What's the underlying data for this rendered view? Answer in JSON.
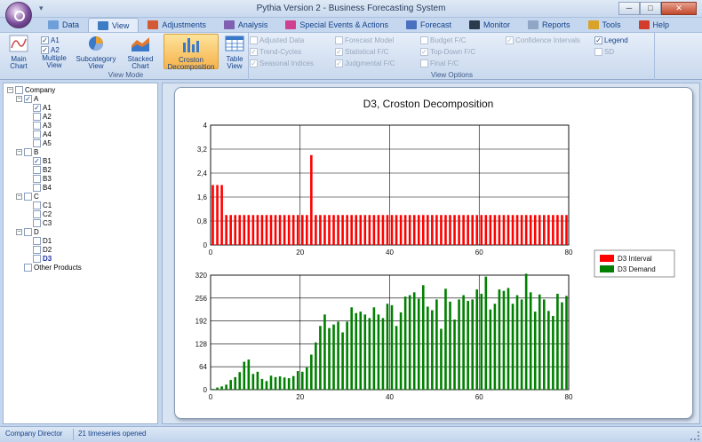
{
  "window": {
    "title": "Pythia Version 2 - Business Forecasting System",
    "qat_label": "▾",
    "minimize_label": "─",
    "maximize_label": "□",
    "close_label": "✕"
  },
  "tabs": [
    {
      "label": "Data",
      "icon": "data-icon",
      "color": "#6f9fd8"
    },
    {
      "label": "View",
      "icon": "view-icon",
      "color": "#3e7cc4"
    },
    {
      "label": "Adjustments",
      "icon": "adjustments-icon",
      "color": "#d35a35"
    },
    {
      "label": "Analysis",
      "icon": "analysis-icon",
      "color": "#8060b0"
    },
    {
      "label": "Special Events & Actions",
      "icon": "special-events-icon",
      "color": "#d04090"
    },
    {
      "label": "Forecast",
      "icon": "forecast-icon",
      "color": "#4a70c0"
    },
    {
      "label": "Monitor",
      "icon": "monitor-icon",
      "color": "#2b3a4c"
    },
    {
      "label": "Reports",
      "icon": "reports-icon",
      "color": "#8fa6c6"
    },
    {
      "label": "Tools",
      "icon": "tools-icon",
      "color": "#d9a32a"
    },
    {
      "label": "Help",
      "icon": "help-icon",
      "color": "#d23d2b"
    }
  ],
  "ribbon": {
    "view_mode": {
      "label": "View Mode",
      "main_chart": "Main Chart",
      "multiple_view": "Multiple View",
      "multiple_checks": [
        {
          "label": "A1",
          "checked": true
        },
        {
          "label": "A2",
          "checked": true
        }
      ],
      "subcategory_view": "Subcategory View",
      "stacked_chart": "Stacked Chart",
      "croston_decomposition": "Croston Decomposition",
      "table_view": "Table View"
    },
    "view_options": {
      "label": "View Options",
      "col1": [
        {
          "label": "Adjusted Data",
          "checked": false,
          "enabled": false
        },
        {
          "label": "Trend-Cycles",
          "checked": true,
          "enabled": false
        },
        {
          "label": "Seasonal Indices",
          "checked": true,
          "enabled": false
        }
      ],
      "col2": [
        {
          "label": "Forecast Model",
          "checked": false,
          "enabled": false
        },
        {
          "label": "Statistical F/C",
          "checked": true,
          "enabled": false
        },
        {
          "label": "Judgmental F/C",
          "checked": true,
          "enabled": false
        }
      ],
      "col3": [
        {
          "label": "Budget F/C",
          "checked": false,
          "enabled": false
        },
        {
          "label": "Top-Down F/C",
          "checked": true,
          "enabled": false
        },
        {
          "label": "Final F/C",
          "checked": false,
          "enabled": false
        }
      ],
      "col4": [
        {
          "label": "Confidence Intervals",
          "checked": true,
          "enabled": false
        }
      ],
      "col5": [
        {
          "label": "Legend",
          "checked": true,
          "enabled": true
        },
        {
          "label": "SD",
          "checked": false,
          "enabled": false
        }
      ]
    }
  },
  "tree": [
    {
      "label": "Company",
      "level": 0,
      "expander": "−",
      "checked": false,
      "selected": false
    },
    {
      "label": "A",
      "level": 1,
      "expander": "−",
      "checked": true,
      "selected": false
    },
    {
      "label": "A1",
      "level": 2,
      "expander": "",
      "checked": true,
      "selected": false
    },
    {
      "label": "A2",
      "level": 2,
      "expander": "",
      "checked": false,
      "selected": false
    },
    {
      "label": "A3",
      "level": 2,
      "expander": "",
      "checked": false,
      "selected": false
    },
    {
      "label": "A4",
      "level": 2,
      "expander": "",
      "checked": false,
      "selected": false
    },
    {
      "label": "A5",
      "level": 2,
      "expander": "",
      "checked": false,
      "selected": false
    },
    {
      "label": "B",
      "level": 1,
      "expander": "−",
      "checked": false,
      "selected": false
    },
    {
      "label": "B1",
      "level": 2,
      "expander": "",
      "checked": true,
      "selected": false
    },
    {
      "label": "B2",
      "level": 2,
      "expander": "",
      "checked": false,
      "selected": false
    },
    {
      "label": "B3",
      "level": 2,
      "expander": "",
      "checked": false,
      "selected": false
    },
    {
      "label": "B4",
      "level": 2,
      "expander": "",
      "checked": false,
      "selected": false
    },
    {
      "label": "C",
      "level": 1,
      "expander": "−",
      "checked": false,
      "selected": false
    },
    {
      "label": "C1",
      "level": 2,
      "expander": "",
      "checked": false,
      "selected": false
    },
    {
      "label": "C2",
      "level": 2,
      "expander": "",
      "checked": false,
      "selected": false
    },
    {
      "label": "C3",
      "level": 2,
      "expander": "",
      "checked": false,
      "selected": false
    },
    {
      "label": "D",
      "level": 1,
      "expander": "−",
      "checked": false,
      "selected": false
    },
    {
      "label": "D1",
      "level": 2,
      "expander": "",
      "checked": false,
      "selected": false
    },
    {
      "label": "D2",
      "level": 2,
      "expander": "",
      "checked": false,
      "selected": false
    },
    {
      "label": "D3",
      "level": 2,
      "expander": "",
      "checked": false,
      "selected": true
    },
    {
      "label": "Other Products",
      "level": 1,
      "expander": "",
      "checked": false,
      "selected": false
    }
  ],
  "status": {
    "user": "Company Director",
    "message": "21 timeseries opened"
  },
  "chart_data": [
    {
      "type": "bar",
      "title": "D3, Croston Decomposition",
      "series": [
        {
          "name": "D3 Interval",
          "color": "#ff0000",
          "x": [
            1,
            2,
            3,
            4,
            5,
            6,
            7,
            8,
            9,
            10,
            11,
            12,
            13,
            14,
            15,
            16,
            17,
            18,
            19,
            20,
            21,
            22,
            23,
            24,
            25,
            26,
            27,
            28,
            29,
            30,
            31,
            32,
            33,
            34,
            35,
            36,
            37,
            38,
            39,
            40,
            41,
            42,
            43,
            44,
            45,
            46,
            47,
            48,
            49,
            50,
            51,
            52,
            53,
            54,
            55,
            56,
            57,
            58,
            59,
            60,
            61,
            62,
            63,
            64,
            65,
            66,
            67,
            68,
            69,
            70,
            71,
            72,
            73,
            74,
            75,
            76,
            77,
            78,
            79,
            80
          ],
          "values": [
            2,
            2,
            2,
            1,
            1,
            1,
            1,
            1,
            1,
            1,
            1,
            1,
            1,
            1,
            1,
            1,
            1,
            1,
            1,
            1,
            1,
            1,
            3,
            1,
            1,
            1,
            1,
            1,
            1,
            1,
            1,
            1,
            1,
            1,
            1,
            1,
            1,
            1,
            1,
            1,
            1,
            1,
            1,
            1,
            1,
            1,
            1,
            1,
            1,
            1,
            1,
            1,
            1,
            1,
            1,
            1,
            1,
            1,
            1,
            1,
            1,
            1,
            1,
            1,
            1,
            1,
            1,
            1,
            1,
            1,
            1,
            1,
            1,
            1,
            1,
            1,
            1,
            1,
            1,
            1
          ]
        }
      ],
      "xlim": [
        0,
        80
      ],
      "ylim": [
        0,
        4
      ],
      "x_ticks": [
        "0",
        "20",
        "40",
        "60",
        "80"
      ],
      "y_ticks": [
        "0",
        "0,8",
        "1,6",
        "2,4",
        "3,2",
        "4"
      ],
      "grid": true
    },
    {
      "type": "bar",
      "series": [
        {
          "name": "D3 Demand",
          "color": "#008000",
          "x": [
            1,
            2,
            3,
            4,
            5,
            6,
            7,
            8,
            9,
            10,
            11,
            12,
            13,
            14,
            15,
            16,
            17,
            18,
            19,
            20,
            21,
            22,
            23,
            24,
            25,
            26,
            27,
            28,
            29,
            30,
            31,
            32,
            33,
            34,
            35,
            36,
            37,
            38,
            39,
            40,
            41,
            42,
            43,
            44,
            45,
            46,
            47,
            48,
            49,
            50,
            51,
            52,
            53,
            54,
            55,
            56,
            57,
            58,
            59,
            60,
            61,
            62,
            63,
            64,
            65,
            66,
            67,
            68,
            69,
            70,
            71,
            72,
            73,
            74,
            75,
            76,
            77,
            78,
            79,
            80
          ],
          "values": [
            2,
            6,
            9,
            14,
            27,
            35,
            49,
            78,
            84,
            44,
            50,
            30,
            24,
            39,
            35,
            37,
            34,
            32,
            38,
            52,
            50,
            62,
            98,
            132,
            178,
            210,
            172,
            182,
            190,
            160,
            190,
            230,
            214,
            218,
            210,
            200,
            230,
            210,
            200,
            240,
            236,
            178,
            216,
            260,
            264,
            272,
            254,
            292,
            232,
            222,
            252,
            170,
            282,
            246,
            196,
            252,
            264,
            248,
            252,
            280,
            268,
            316,
            224,
            240,
            280,
            276,
            284,
            240,
            264,
            252,
            324,
            272,
            218,
            266,
            252,
            220,
            206,
            268,
            244,
            262
          ]
        }
      ],
      "xlim": [
        0,
        80
      ],
      "ylim": [
        0,
        320
      ],
      "x_ticks": [
        "0",
        "20",
        "40",
        "60",
        "80"
      ],
      "y_ticks": [
        "0",
        "64",
        "128",
        "192",
        "256",
        "320"
      ],
      "grid": true
    }
  ]
}
